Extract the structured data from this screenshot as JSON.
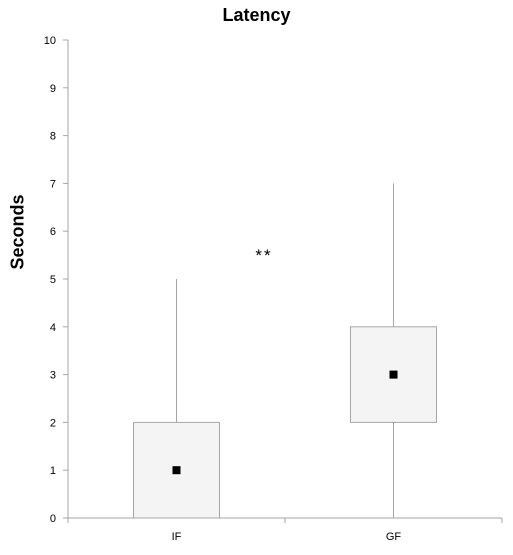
{
  "chart_data": {
    "type": "box",
    "title": "Latency",
    "xlabel": "",
    "ylabel": "Seconds",
    "ylim": [
      0,
      10
    ],
    "yticks": [
      0,
      1,
      2,
      3,
      4,
      5,
      6,
      7,
      8,
      9,
      10
    ],
    "grid": false,
    "legend": "none",
    "categories": [
      "IF",
      "GF"
    ],
    "boxes": [
      {
        "category": "IF",
        "min": 0,
        "q1": 0,
        "median": 1,
        "q3": 2,
        "max": 5
      },
      {
        "category": "GF",
        "min": 0,
        "q1": 2,
        "median": 3,
        "q3": 4,
        "max": 7
      }
    ],
    "annotations": [
      {
        "text": "**"
      }
    ],
    "colors": {
      "box_fill": "#f4f4f4",
      "box_stroke": "#a6a6a6",
      "whisker": "#a6a6a6",
      "marker": "#000000",
      "axis": "#a6a6a6"
    }
  }
}
